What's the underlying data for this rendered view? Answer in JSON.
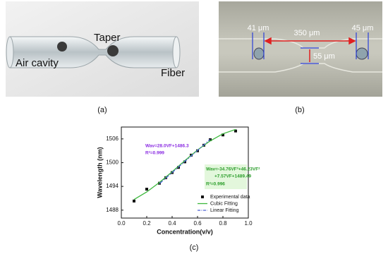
{
  "panel_a": {
    "labels": [
      "Taper",
      "Air cavity",
      "Fiber"
    ],
    "caption": "(a)"
  },
  "panel_b": {
    "labels": [
      "41 μm",
      "350 μm",
      "45 μm",
      "55 μm"
    ],
    "caption": "(b)"
  },
  "chart_data": {
    "type": "scatter",
    "caption": "(c)",
    "x_label": "Concentration(v/v)",
    "y_label": "Wavelength (nm)",
    "xlim": [
      0,
      1
    ],
    "xticks": [
      {
        "value": 0,
        "label": "0.0"
      },
      0.2,
      0.4,
      0.6,
      0.8,
      {
        "value": 1,
        "label": "1.0"
      }
    ],
    "ylim": [
      1486,
      1509
    ],
    "yticks": [
      1488,
      1494,
      1500,
      1506
    ],
    "legend": "lower right",
    "series": [
      {
        "name": "Experimental data",
        "style": "markers",
        "color": "#111111",
        "x": [
          0.1,
          0.2,
          0.3,
          0.35,
          0.4,
          0.45,
          0.5,
          0.55,
          0.6,
          0.65,
          0.7,
          0.8,
          0.9
        ],
        "values": [
          1490.3,
          1493.3,
          1494.8,
          1496.2,
          1497.5,
          1498.8,
          1500.2,
          1501.9,
          1503.0,
          1504.4,
          1505.8,
          1507.0,
          1508.0
        ]
      },
      {
        "name": "Cubic Fitting",
        "style": "line",
        "color": "#3cb83c",
        "x": [
          0.1,
          0.2,
          0.3,
          0.4,
          0.5,
          0.6,
          0.7,
          0.8,
          0.9
        ],
        "values": [
          1490.7,
          1492.6,
          1495.0,
          1497.7,
          1500.5,
          1503.2,
          1505.5,
          1507.3,
          1508.4
        ]
      },
      {
        "name": "Linear Fitting",
        "style": "dash-dot",
        "color": "#4a5fd0",
        "x": [
          0.3,
          0.7
        ],
        "values": [
          1494.7,
          1505.9
        ]
      }
    ],
    "annotations": [
      {
        "text": "Wav=28.0VF+1486.3",
        "color": "#8a2be2"
      },
      {
        "text": "R²=0.999",
        "color": "#8a2be2"
      },
      {
        "text": "Wav=-34.76VF³+46.23VF²",
        "color": "#2a9d2a"
      },
      {
        "text": "+7.57VF+1489.49",
        "color": "#2a9d2a"
      },
      {
        "text": "R²=0.996",
        "color": "#2a9d2a"
      }
    ]
  }
}
